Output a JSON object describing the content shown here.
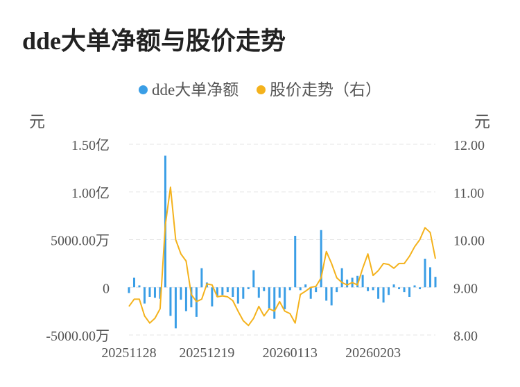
{
  "title": "dde大单净额与股价走势",
  "legend": [
    {
      "label": "dde大单净额",
      "color": "#3a9ee6"
    },
    {
      "label": "股价走势（右）",
      "color": "#f4b21c"
    }
  ],
  "unit_left": "元",
  "unit_right": "元",
  "chart_data": {
    "type": "bar+line",
    "y_left": {
      "ticks": [
        -50000000,
        0,
        50000000,
        100000000,
        150000000
      ],
      "tick_labels": [
        "-5000.00万",
        "0",
        "5000.00万",
        "1.00亿",
        "1.50亿"
      ],
      "range": [
        -50000000,
        150000000
      ]
    },
    "y_right": {
      "ticks": [
        8,
        9,
        10,
        11,
        12
      ],
      "tick_labels": [
        "8.00",
        "9.00",
        "10.00",
        "11.00",
        "12.00"
      ],
      "range": [
        8,
        12
      ]
    },
    "x_tick_labels": [
      {
        "label": "20251128",
        "index": 0
      },
      {
        "label": "20251219",
        "index": 15
      },
      {
        "label": "20260113",
        "index": 31
      },
      {
        "label": "20260203",
        "index": 47
      }
    ],
    "grid": true,
    "legend_position": "top",
    "series": [
      {
        "name": "dde大单净额",
        "type": "bar",
        "axis": "left",
        "color": "#3a9ee6",
        "values": [
          -6000000,
          10000000,
          2000000,
          -17000000,
          -10000000,
          -11000000,
          -12000000,
          138000000,
          -30000000,
          -43000000,
          -13000000,
          -25000000,
          -21000000,
          -31000000,
          20000000,
          5000000,
          -20000000,
          -10000000,
          -8000000,
          -5000000,
          -10000000,
          -17000000,
          -12000000,
          -2000000,
          18000000,
          -11000000,
          -4000000,
          -22000000,
          -33000000,
          -11000000,
          -23000000,
          -3000000,
          54000000,
          -3000000,
          3000000,
          -12000000,
          -5000000,
          60000000,
          -14000000,
          -19000000,
          -5000000,
          20000000,
          8000000,
          10000000,
          12000000,
          13000000,
          -4000000,
          -3000000,
          -12000000,
          -16000000,
          -8000000,
          3000000,
          -2000000,
          -5000000,
          -10000000,
          2000000,
          -2000000,
          30000000,
          21000000,
          11000000
        ]
      },
      {
        "name": "股价走势（右）",
        "type": "line",
        "axis": "right",
        "color": "#f4b21c",
        "values": [
          8.6,
          8.75,
          8.75,
          8.4,
          8.25,
          8.35,
          8.55,
          10.3,
          11.1,
          10.0,
          9.7,
          9.55,
          8.85,
          8.7,
          8.75,
          9.07,
          9.05,
          8.8,
          8.82,
          8.8,
          8.72,
          8.5,
          8.3,
          8.2,
          8.35,
          8.6,
          8.4,
          8.55,
          8.5,
          8.7,
          8.5,
          8.45,
          8.25,
          8.85,
          8.92,
          9.0,
          9.02,
          9.2,
          9.75,
          9.5,
          9.2,
          9.1,
          9.05,
          9.1,
          9.05,
          9.4,
          9.7,
          9.25,
          9.35,
          9.5,
          9.48,
          9.4,
          9.5,
          9.5,
          9.65,
          9.85,
          10.0,
          10.25,
          10.15,
          9.6
        ]
      }
    ]
  }
}
